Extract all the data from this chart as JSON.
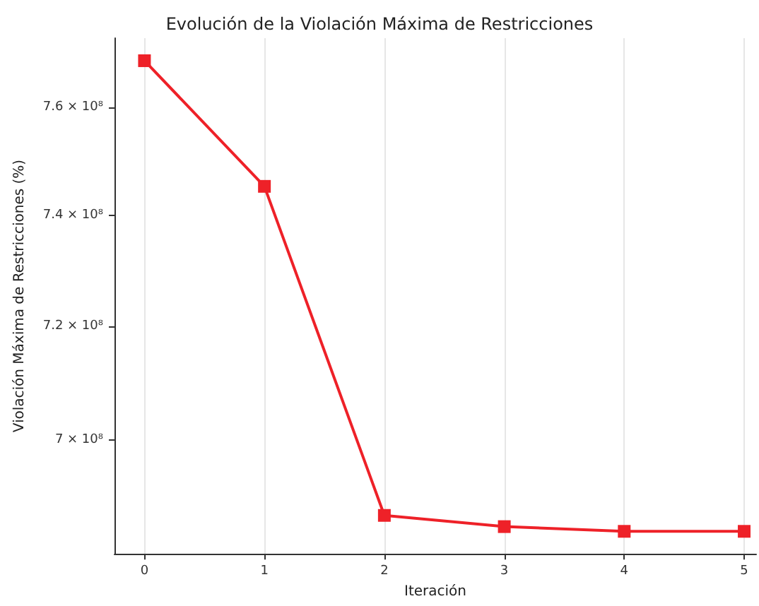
{
  "chart_data": {
    "type": "line",
    "title": "Evolución de la Violación Máxima de Restricciones",
    "xlabel": "Iteración",
    "ylabel": "Violación Máxima de Restricciones (%)",
    "x": [
      0,
      1,
      2,
      3,
      4,
      5
    ],
    "series": [
      {
        "color": "#ee2128",
        "values": [
          768800000,
          745300000,
          687100000,
          685200000,
          684400000,
          684400000
        ]
      }
    ],
    "xlim": [
      -0.25,
      5.1
    ],
    "xticks": [
      0,
      1,
      2,
      3,
      4,
      5
    ],
    "ylim": [
      680600000,
      773100000
    ],
    "yticks": [
      {
        "value": 700000000,
        "label": "7 × 10⁸"
      },
      {
        "value": 720000000,
        "label": "7.2 × 10⁸"
      },
      {
        "value": 740000000,
        "label": "7.4 × 10⁸"
      },
      {
        "value": 760000000,
        "label": "7.6 × 10⁸"
      }
    ],
    "log": "y",
    "grid": "x",
    "marker": "square",
    "line_style": "solid"
  }
}
